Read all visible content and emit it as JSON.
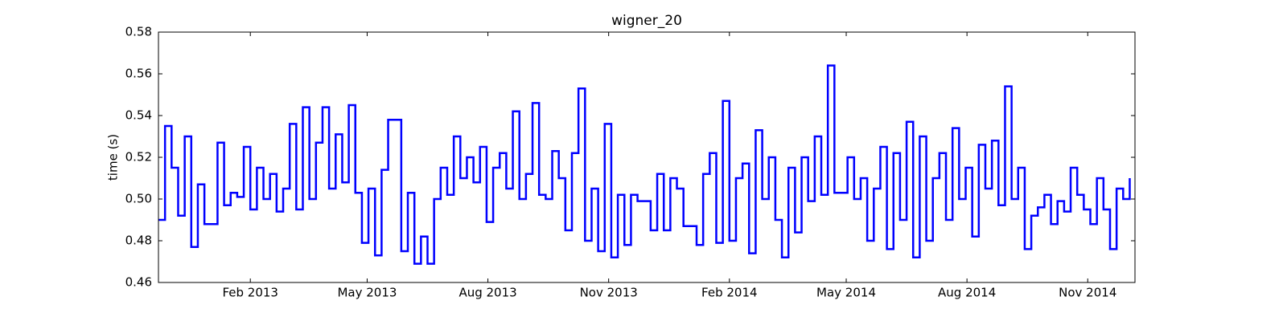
{
  "chart_data": {
    "type": "line",
    "step": "post",
    "title": "wigner_20",
    "ylabel": "time (s)",
    "color": "#0000ff",
    "x": [
      "2012-11-23",
      "2012-11-28",
      "2012-12-03",
      "2012-12-08",
      "2012-12-13",
      "2012-12-18",
      "2012-12-23",
      "2012-12-28",
      "2013-01-02",
      "2013-01-07",
      "2013-01-12",
      "2013-01-17",
      "2013-01-22",
      "2013-01-27",
      "2013-02-01",
      "2013-02-06",
      "2013-02-11",
      "2013-02-16",
      "2013-02-21",
      "2013-02-26",
      "2013-03-03",
      "2013-03-08",
      "2013-03-13",
      "2013-03-18",
      "2013-03-23",
      "2013-03-28",
      "2013-04-02",
      "2013-04-07",
      "2013-04-12",
      "2013-04-17",
      "2013-04-22",
      "2013-04-27",
      "2013-05-02",
      "2013-05-07",
      "2013-05-12",
      "2013-05-17",
      "2013-05-22",
      "2013-05-27",
      "2013-06-01",
      "2013-06-06",
      "2013-06-11",
      "2013-06-16",
      "2013-06-21",
      "2013-06-26",
      "2013-07-01",
      "2013-07-06",
      "2013-07-11",
      "2013-07-16",
      "2013-07-21",
      "2013-07-26",
      "2013-07-31",
      "2013-08-05",
      "2013-08-10",
      "2013-08-15",
      "2013-08-20",
      "2013-08-25",
      "2013-08-30",
      "2013-09-04",
      "2013-09-09",
      "2013-09-14",
      "2013-09-19",
      "2013-09-24",
      "2013-09-29",
      "2013-10-04",
      "2013-10-09",
      "2013-10-14",
      "2013-10-19",
      "2013-10-24",
      "2013-10-29",
      "2013-11-03",
      "2013-11-08",
      "2013-11-13",
      "2013-11-18",
      "2013-11-23",
      "2013-11-28",
      "2013-12-03",
      "2013-12-08",
      "2013-12-13",
      "2013-12-18",
      "2013-12-23",
      "2013-12-28",
      "2014-01-02",
      "2014-01-07",
      "2014-01-12",
      "2014-01-17",
      "2014-01-22",
      "2014-01-27",
      "2014-02-01",
      "2014-02-06",
      "2014-02-11",
      "2014-02-16",
      "2014-02-21",
      "2014-02-26",
      "2014-03-03",
      "2014-03-08",
      "2014-03-13",
      "2014-03-18",
      "2014-03-23",
      "2014-03-28",
      "2014-04-02",
      "2014-04-07",
      "2014-04-12",
      "2014-04-17",
      "2014-04-22",
      "2014-04-27",
      "2014-05-02",
      "2014-05-07",
      "2014-05-12",
      "2014-05-17",
      "2014-05-22",
      "2014-05-27",
      "2014-06-01",
      "2014-06-06",
      "2014-06-11",
      "2014-06-16",
      "2014-06-21",
      "2014-06-26",
      "2014-07-01",
      "2014-07-06",
      "2014-07-11",
      "2014-07-16",
      "2014-07-21",
      "2014-07-26",
      "2014-07-31",
      "2014-08-05",
      "2014-08-10",
      "2014-08-15",
      "2014-08-20",
      "2014-08-25",
      "2014-08-30",
      "2014-09-04",
      "2014-09-09",
      "2014-09-14",
      "2014-09-19",
      "2014-09-24",
      "2014-09-29",
      "2014-10-04",
      "2014-10-09",
      "2014-10-14",
      "2014-10-19",
      "2014-10-24",
      "2014-10-29",
      "2014-11-03",
      "2014-11-08",
      "2014-11-13",
      "2014-11-18",
      "2014-11-23",
      "2014-11-28",
      "2014-12-03"
    ],
    "values": [
      0.49,
      0.535,
      0.515,
      0.492,
      0.53,
      0.477,
      0.507,
      0.488,
      0.488,
      0.527,
      0.497,
      0.503,
      0.501,
      0.525,
      0.495,
      0.515,
      0.5,
      0.512,
      0.494,
      0.505,
      0.536,
      0.495,
      0.544,
      0.5,
      0.527,
      0.544,
      0.505,
      0.531,
      0.508,
      0.545,
      0.503,
      0.479,
      0.505,
      0.473,
      0.514,
      0.538,
      0.538,
      0.475,
      0.503,
      0.469,
      0.482,
      0.469,
      0.5,
      0.515,
      0.502,
      0.53,
      0.51,
      0.52,
      0.508,
      0.525,
      0.489,
      0.515,
      0.522,
      0.505,
      0.542,
      0.5,
      0.512,
      0.546,
      0.502,
      0.5,
      0.523,
      0.51,
      0.485,
      0.522,
      0.553,
      0.48,
      0.505,
      0.475,
      0.536,
      0.472,
      0.502,
      0.478,
      0.502,
      0.499,
      0.499,
      0.485,
      0.512,
      0.485,
      0.51,
      0.505,
      0.487,
      0.487,
      0.478,
      0.512,
      0.522,
      0.479,
      0.547,
      0.48,
      0.51,
      0.517,
      0.474,
      0.533,
      0.5,
      0.52,
      0.49,
      0.472,
      0.515,
      0.484,
      0.52,
      0.499,
      0.53,
      0.502,
      0.564,
      0.503,
      0.503,
      0.52,
      0.5,
      0.51,
      0.48,
      0.505,
      0.525,
      0.476,
      0.522,
      0.49,
      0.537,
      0.472,
      0.53,
      0.48,
      0.51,
      0.522,
      0.49,
      0.534,
      0.5,
      0.515,
      0.482,
      0.526,
      0.505,
      0.528,
      0.497,
      0.554,
      0.5,
      0.515,
      0.476,
      0.492,
      0.496,
      0.502,
      0.488,
      0.499,
      0.494,
      0.515,
      0.502,
      0.495,
      0.488,
      0.51,
      0.495,
      0.476,
      0.505,
      0.5,
      0.51
    ],
    "xlim": [
      "2012-11-23",
      "2014-12-07"
    ],
    "xticks": [
      {
        "value": "2013-02-01",
        "label": "Feb 2013"
      },
      {
        "value": "2013-05-01",
        "label": "May 2013"
      },
      {
        "value": "2013-08-01",
        "label": "Aug 2013"
      },
      {
        "value": "2013-11-01",
        "label": "Nov 2013"
      },
      {
        "value": "2014-02-01",
        "label": "Feb 2014"
      },
      {
        "value": "2014-05-01",
        "label": "May 2014"
      },
      {
        "value": "2014-08-01",
        "label": "Aug 2014"
      },
      {
        "value": "2014-11-01",
        "label": "Nov 2014"
      }
    ],
    "ylim": [
      0.46,
      0.58
    ],
    "yticks": [
      0.46,
      0.48,
      {
        "value": 0.5,
        "label": "0.50"
      },
      0.52,
      0.54,
      0.56,
      0.58
    ],
    "grid": false
  }
}
